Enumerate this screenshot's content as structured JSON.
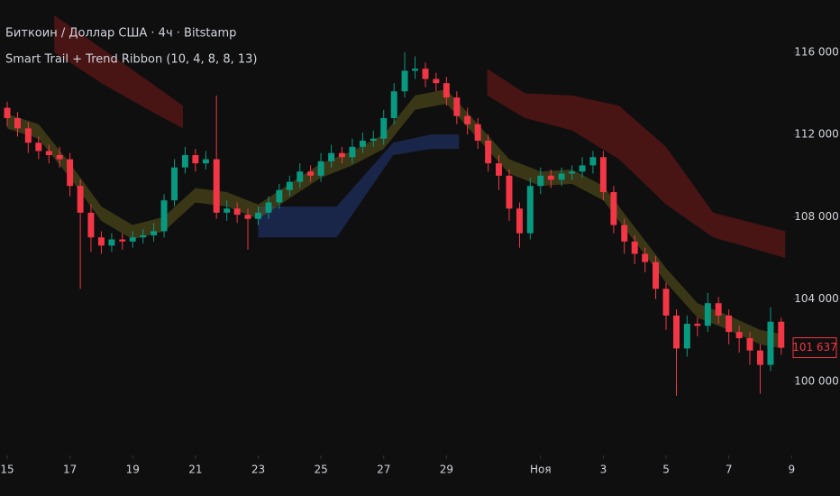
{
  "chart_data": {
    "type": "candlestick",
    "title": "Биткоин / Доллар США · 4ч · Bitstamp",
    "subtitle": "Smart Trail + Trend Ribbon (10, 4, 8, 8, 13)",
    "up_color": "#089981",
    "down_color": "#f23645",
    "xlim": [
      -0.23,
      25.05
    ],
    "ylim": [
      96400,
      118540
    ],
    "xticks": [
      {
        "value": 0,
        "label": "15"
      },
      {
        "value": 2,
        "label": "17"
      },
      {
        "value": 4,
        "label": "19"
      },
      {
        "value": 6,
        "label": "21"
      },
      {
        "value": 8,
        "label": "23"
      },
      {
        "value": 10,
        "label": "25"
      },
      {
        "value": 12,
        "label": "27"
      },
      {
        "value": 14,
        "label": "29"
      },
      {
        "value": 17,
        "label": "Ноя"
      },
      {
        "value": 19,
        "label": "3"
      },
      {
        "value": 21,
        "label": "5"
      },
      {
        "value": 23,
        "label": "7"
      },
      {
        "value": 25,
        "label": "9"
      }
    ],
    "yticks": [
      {
        "value": 100000,
        "label": "100 000"
      },
      {
        "value": 104000,
        "label": "104 000"
      },
      {
        "value": 108000,
        "label": "108 000"
      },
      {
        "value": 112000,
        "label": "112 000"
      },
      {
        "value": 116000,
        "label": "116 000"
      }
    ],
    "last_price": {
      "value": 101637,
      "label": "101 637"
    },
    "x": [
      0,
      0.33,
      0.67,
      1,
      1.33,
      1.67,
      2,
      2.33,
      2.67,
      3,
      3.33,
      3.67,
      4,
      4.33,
      4.67,
      5,
      5.33,
      5.67,
      6,
      6.33,
      6.67,
      7,
      7.33,
      7.67,
      8,
      8.33,
      8.67,
      9,
      9.33,
      9.67,
      10,
      10.33,
      10.67,
      11,
      11.33,
      11.67,
      12,
      12.33,
      12.67,
      13,
      13.33,
      13.67,
      14,
      14.33,
      14.67,
      15,
      15.33,
      15.67,
      16,
      16.33,
      16.67,
      17,
      17.33,
      17.67,
      18,
      18.33,
      18.67,
      19,
      19.33,
      19.67,
      20,
      20.33,
      20.67,
      21,
      21.33,
      21.67,
      22,
      22.33,
      22.67,
      23,
      23.33,
      23.67,
      24,
      24.33,
      24.67
    ],
    "open": [
      113300,
      112800,
      112300,
      111600,
      111200,
      111000,
      110800,
      109500,
      108200,
      107000,
      106600,
      106900,
      106800,
      107000,
      107100,
      107300,
      108800,
      110400,
      111000,
      110600,
      110800,
      108200,
      108400,
      108100,
      107900,
      108200,
      108700,
      109300,
      109700,
      110200,
      110000,
      110700,
      111100,
      110900,
      111400,
      111700,
      111800,
      112800,
      114100,
      115100,
      115200,
      114700,
      114500,
      113800,
      112900,
      112500,
      111700,
      110600,
      110000,
      108400,
      107200,
      109500,
      110000,
      109800,
      110100,
      110200,
      110500,
      110900,
      109200,
      107600,
      106800,
      106200,
      105800,
      104500,
      103200,
      101600,
      102800,
      102700,
      103800,
      103200,
      102400,
      102100,
      101500,
      100800,
      102900
    ],
    "high": [
      113600,
      113100,
      112600,
      111900,
      111500,
      111400,
      111100,
      109800,
      108600,
      107300,
      107200,
      107200,
      107300,
      107400,
      107700,
      109100,
      110800,
      111400,
      111300,
      111200,
      113900,
      108800,
      108700,
      108400,
      108500,
      109000,
      109600,
      110000,
      110600,
      110500,
      111100,
      111500,
      111400,
      111800,
      112100,
      112200,
      113200,
      114500,
      116000,
      115800,
      115500,
      115000,
      114800,
      114100,
      113300,
      112800,
      112000,
      111000,
      110300,
      108700,
      109900,
      110400,
      110300,
      110400,
      110500,
      110900,
      111200,
      111200,
      109500,
      107900,
      107100,
      106500,
      106100,
      104800,
      103500,
      103200,
      103100,
      104300,
      104100,
      103500,
      102700,
      102400,
      101800,
      103600,
      103100
    ],
    "low": [
      112400,
      111900,
      111100,
      110800,
      110600,
      110400,
      109000,
      104500,
      106300,
      106200,
      106300,
      106400,
      106500,
      106700,
      106800,
      107000,
      108500,
      110100,
      110200,
      110300,
      107900,
      107800,
      107700,
      106400,
      107600,
      107900,
      108400,
      109000,
      109400,
      109700,
      109700,
      110400,
      110600,
      110600,
      111100,
      111400,
      111500,
      112500,
      113800,
      114700,
      114300,
      114100,
      113400,
      112500,
      112000,
      111300,
      110200,
      109300,
      107800,
      106500,
      106900,
      109100,
      109400,
      109500,
      109800,
      109900,
      110100,
      108800,
      107200,
      106200,
      105700,
      105300,
      104000,
      102500,
      99300,
      101200,
      102200,
      102400,
      102800,
      101800,
      101400,
      100800,
      99400,
      100500,
      101300
    ],
    "close": [
      112800,
      112300,
      111600,
      111200,
      111000,
      110800,
      109500,
      108200,
      107000,
      106600,
      106900,
      106800,
      107000,
      107100,
      107300,
      108800,
      110400,
      111000,
      110600,
      110800,
      108200,
      108400,
      108100,
      107900,
      108200,
      108700,
      109300,
      109700,
      110200,
      110000,
      110700,
      111100,
      110900,
      111400,
      111700,
      111800,
      112800,
      114100,
      115100,
      115200,
      114700,
      114500,
      113800,
      112900,
      112500,
      111700,
      110600,
      110000,
      108400,
      107200,
      109500,
      110000,
      109800,
      110100,
      110200,
      110500,
      110900,
      109200,
      107600,
      106800,
      106200,
      105800,
      104500,
      103200,
      101600,
      102800,
      102700,
      103800,
      103200,
      102400,
      102100,
      101500,
      100800,
      102900,
      101637
    ],
    "bands": [
      {
        "color": "#7a1a1a",
        "x": [
          1.5,
          3,
          4.5,
          5.6
        ],
        "upper": [
          117800,
          116200,
          114600,
          113400
        ],
        "lower": [
          116000,
          114500,
          113200,
          112300
        ]
      },
      {
        "color": "#7a1a1a",
        "x": [
          15.3,
          16.5,
          18,
          19.5,
          21,
          22.5,
          24.8
        ],
        "upper": [
          115200,
          114000,
          113900,
          113400,
          111400,
          108200,
          107300
        ],
        "lower": [
          113900,
          112800,
          112200,
          110800,
          108600,
          107000,
          106000
        ]
      },
      {
        "color": "#243a7a",
        "x": [
          8,
          10.5,
          12.3,
          13.5,
          14.4
        ],
        "upper": [
          108500,
          108500,
          111600,
          112000,
          112000
        ],
        "lower": [
          107000,
          107000,
          111000,
          111300,
          111300
        ]
      },
      {
        "color": "#5e5a1e",
        "x": [
          0,
          1,
          2,
          3,
          4,
          5,
          6,
          7,
          8,
          9,
          10,
          11,
          12,
          13,
          14,
          15,
          16,
          17,
          18,
          19,
          20,
          21,
          22,
          23,
          24,
          24.7
        ],
        "upper": [
          113000,
          112500,
          110600,
          108500,
          107600,
          108000,
          109400,
          109200,
          108600,
          109600,
          110600,
          111200,
          112000,
          113900,
          114200,
          112500,
          110800,
          110200,
          110300,
          109500,
          107500,
          105500,
          103800,
          103200,
          102500,
          102300
        ],
        "lower": [
          112300,
          111800,
          109900,
          107800,
          106900,
          107300,
          108700,
          108500,
          107900,
          108900,
          109900,
          110500,
          111300,
          113200,
          113500,
          111800,
          110100,
          109500,
          109600,
          108800,
          106800,
          104800,
          103100,
          102500,
          101800,
          101600
        ]
      }
    ]
  }
}
